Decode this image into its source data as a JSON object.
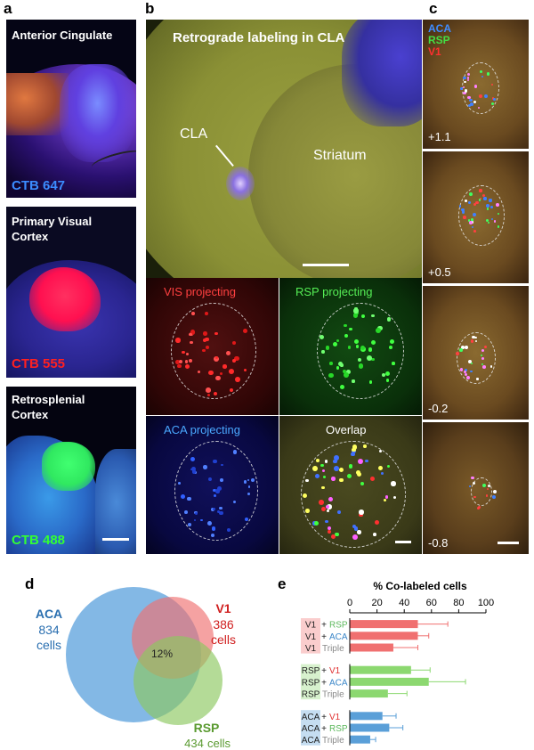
{
  "panel_labels": {
    "a": "a",
    "b": "b",
    "c": "c",
    "d": "d",
    "e": "e"
  },
  "panel_a": {
    "tiles": [
      {
        "title": "Anterior Cingulate",
        "tracer": "CTB 647",
        "tracer_color": "#3b8cff"
      },
      {
        "title": "Primary Visual Cortex",
        "tracer": "CTB 555",
        "tracer_color": "#ff2020"
      },
      {
        "title": "Retrosplenial Cortex",
        "tracer": "CTB 488",
        "tracer_color": "#33ff33"
      }
    ]
  },
  "panel_b": {
    "title": "Retrograde labeling in CLA",
    "cla_label": "CLA",
    "striatum_label": "Striatum",
    "subpanels": [
      {
        "label": "VIS projecting",
        "color": "#ff4040"
      },
      {
        "label": "RSP projecting",
        "color": "#55ee55"
      },
      {
        "label": "ACA projecting",
        "color": "#4aa8ff"
      },
      {
        "label": "Overlap",
        "color": "#ffffff"
      }
    ]
  },
  "panel_c": {
    "legend": [
      {
        "text": "ACA",
        "color": "#3f8cff"
      },
      {
        "text": "RSP",
        "color": "#44dd44"
      },
      {
        "text": "V1",
        "color": "#ff3030"
      }
    ],
    "coords": [
      "+1.1",
      "+0.5",
      "-0.2",
      "-0.8"
    ]
  },
  "panel_d": {
    "sets": [
      {
        "name": "ACA",
        "count": "834",
        "unit": "cells",
        "color": "#5aa0dc"
      },
      {
        "name": "V1",
        "count": "386",
        "unit": "cells",
        "color": "#f07070"
      },
      {
        "name": "RSP",
        "count": "434",
        "unit": "cells",
        "color": "#8cc860"
      }
    ],
    "center": "12%"
  },
  "chart_data": {
    "type": "bar",
    "orientation": "horizontal",
    "title": "% Co-labeled cells",
    "xlim": [
      0,
      100
    ],
    "xticks": [
      0,
      20,
      40,
      60,
      80,
      100
    ],
    "groups": [
      {
        "reference": "V1",
        "color": "#f07070",
        "rows": [
          {
            "a": "V1",
            "op": "+",
            "b": "RSP",
            "b_color": "#5cb85c",
            "value": 50,
            "err": 22
          },
          {
            "a": "V1",
            "op": "+",
            "b": "ACA",
            "b_color": "#3a86c8",
            "value": 50,
            "err": 8
          },
          {
            "a": "V1",
            "op": "",
            "b": "Triple",
            "b_color": "#888888",
            "value": 32,
            "err": 18
          }
        ]
      },
      {
        "reference": "RSP",
        "color": "#8cd870",
        "rows": [
          {
            "a": "RSP",
            "op": "+",
            "b": "V1",
            "b_color": "#e03030",
            "value": 45,
            "err": 14
          },
          {
            "a": "RSP",
            "op": "+",
            "b": "ACA",
            "b_color": "#3a86c8",
            "value": 58,
            "err": 27
          },
          {
            "a": "RSP",
            "op": "",
            "b": "Triple",
            "b_color": "#888888",
            "value": 28,
            "err": 14
          }
        ]
      },
      {
        "reference": "ACA",
        "color": "#5a9fd8",
        "rows": [
          {
            "a": "ACA",
            "op": "+",
            "b": "V1",
            "b_color": "#e03030",
            "value": 24,
            "err": 10
          },
          {
            "a": "ACA",
            "op": "+",
            "b": "RSP",
            "b_color": "#5cb85c",
            "value": 29,
            "err": 10
          },
          {
            "a": "ACA",
            "op": "",
            "b": "Triple",
            "b_color": "#888888",
            "value": 15,
            "err": 4
          }
        ]
      }
    ]
  }
}
